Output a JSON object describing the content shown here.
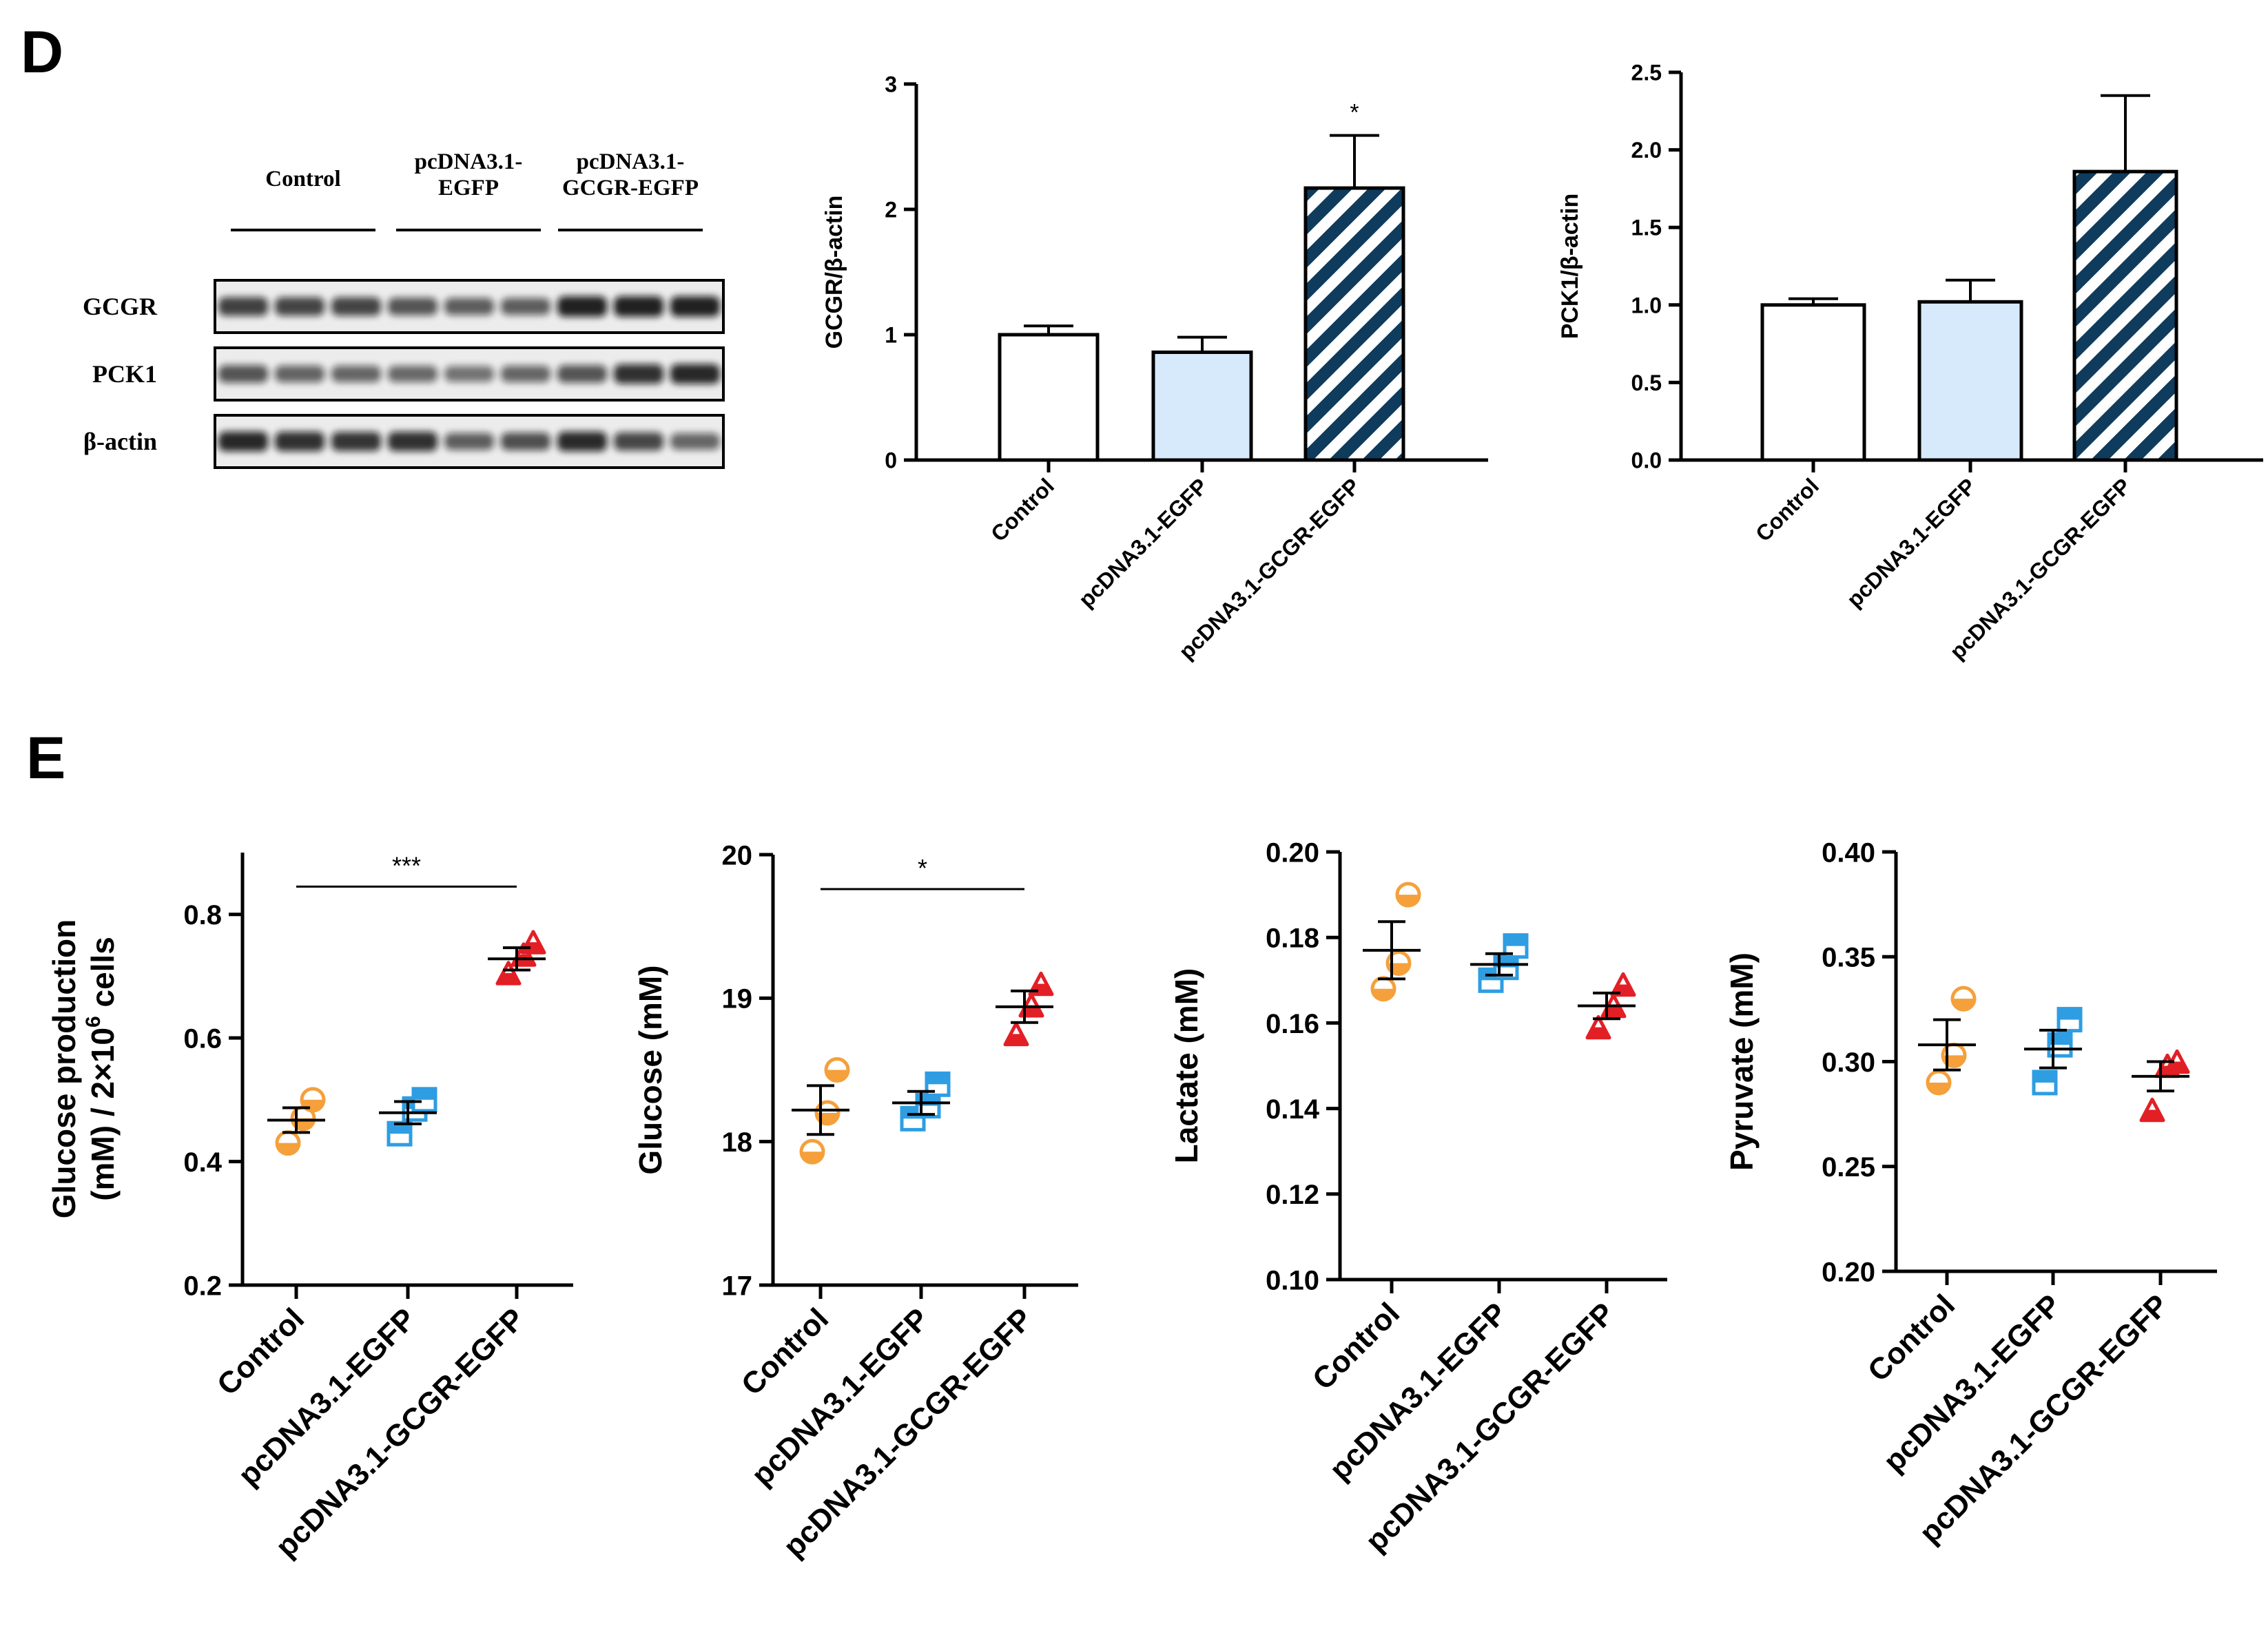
{
  "panel_labels": {
    "d": "D",
    "e": "E"
  },
  "colors": {
    "axis": "#000000",
    "light_blue_bar": "#d7eafb",
    "hatch_dark": "#0f3b5c",
    "orange": "#f5a03b",
    "blue": "#2e9de2",
    "red": "#e31f26"
  },
  "western_blot": {
    "groups": [
      "Control",
      "pcDNA3.1-\nEGFP",
      "pcDNA3.1-\nGCGR-EGFP"
    ],
    "rows": [
      {
        "name": "GCGR",
        "intensities": [
          0.75,
          0.72,
          0.72,
          0.62,
          0.56,
          0.55,
          0.95,
          0.95,
          0.95
        ]
      },
      {
        "name": "PCK1",
        "intensities": [
          0.62,
          0.52,
          0.5,
          0.48,
          0.42,
          0.5,
          0.62,
          0.85,
          0.9
        ]
      },
      {
        "name": "β-actin",
        "intensities": [
          0.9,
          0.85,
          0.82,
          0.85,
          0.55,
          0.65,
          0.88,
          0.7,
          0.5
        ]
      }
    ]
  },
  "chart_data": [
    {
      "type": "bar",
      "id": "gcgr",
      "categories": [
        "Control",
        "pcDNA3.1-EGFP",
        "pcDNA3.1-GCGR-EGFP"
      ],
      "values": [
        1.0,
        0.86,
        2.17
      ],
      "errors": [
        0.07,
        0.12,
        0.42
      ],
      "fills": [
        "white",
        "light",
        "hatch"
      ],
      "annotations": [
        "",
        "",
        "*"
      ],
      "ylabel": "GCGR/β-actin",
      "ylim": [
        0,
        3
      ],
      "yticks": [
        "0",
        "1",
        "2",
        "3"
      ]
    },
    {
      "type": "bar",
      "id": "pck1",
      "categories": [
        "Control",
        "pcDNA3.1-EGFP",
        "pcDNA3.1-GCGR-EGFP"
      ],
      "values": [
        1.0,
        1.02,
        1.86
      ],
      "errors": [
        0.04,
        0.14,
        0.49
      ],
      "fills": [
        "white",
        "light",
        "hatch"
      ],
      "annotations": [
        "",
        "",
        ""
      ],
      "ylabel": "PCK1/β-actin",
      "ylim": [
        0,
        2.5
      ],
      "yticks": [
        "0.0",
        "0.5",
        "1.0",
        "1.5",
        "2.0",
        "2.5"
      ]
    },
    {
      "type": "scatter",
      "id": "glucose-production",
      "categories": [
        "Control",
        "pcDNA3.1-EGFP",
        "pcDNA3.1-GCGR-EGFP"
      ],
      "ylabel_lines": [
        "Glucose production",
        "(mM) / 2×10",
        "6",
        " cells"
      ],
      "ylim": [
        0.2,
        0.9
      ],
      "yticks": [
        "0.2",
        "0.4",
        "0.6",
        "0.8"
      ],
      "series": [
        {
          "name": "Control",
          "marker": "circle",
          "color": "orange",
          "points": [
            0.43,
            0.47,
            0.5
          ],
          "mean": 0.467,
          "sem": 0.02
        },
        {
          "name": "pcDNA3.1-EGFP",
          "marker": "square",
          "color": "blue",
          "points": [
            0.445,
            0.485,
            0.5
          ],
          "mean": 0.479,
          "sem": 0.018
        },
        {
          "name": "pcDNA3.1-GCGR-EGFP",
          "marker": "triangle",
          "color": "red",
          "points": [
            0.705,
            0.735,
            0.755
          ],
          "mean": 0.728,
          "sem": 0.018
        }
      ],
      "significance": {
        "from": 0,
        "to": 2,
        "label": "***",
        "y": 0.845
      }
    },
    {
      "type": "scatter",
      "id": "glucose",
      "categories": [
        "Control",
        "pcDNA3.1-EGFP",
        "pcDNA3.1-GCGR-EGFP"
      ],
      "ylabel_lines": [
        "Glucose (mM)"
      ],
      "ylim": [
        17,
        20
      ],
      "yticks": [
        "17",
        "18",
        "19",
        "20"
      ],
      "series": [
        {
          "name": "Control",
          "marker": "circle",
          "color": "orange",
          "points": [
            17.93,
            18.2,
            18.5
          ],
          "mean": 18.22,
          "sem": 0.17
        },
        {
          "name": "pcDNA3.1-EGFP",
          "marker": "square",
          "color": "blue",
          "points": [
            18.16,
            18.25,
            18.4
          ],
          "mean": 18.27,
          "sem": 0.08
        },
        {
          "name": "pcDNA3.1-GCGR-EGFP",
          "marker": "triangle",
          "color": "red",
          "points": [
            18.75,
            18.95,
            19.1
          ],
          "mean": 18.94,
          "sem": 0.11
        }
      ],
      "significance": {
        "from": 0,
        "to": 2,
        "label": "*",
        "y": 19.76
      }
    },
    {
      "type": "scatter",
      "id": "lactate",
      "categories": [
        "Control",
        "pcDNA3.1-EGFP",
        "pcDNA3.1-GCGR-EGFP"
      ],
      "ylabel_lines": [
        "Lactate (mM)"
      ],
      "ylim": [
        0.1,
        0.2
      ],
      "yticks": [
        "0.10",
        "0.12",
        "0.14",
        "0.16",
        "0.18",
        "0.20"
      ],
      "series": [
        {
          "name": "Control",
          "marker": "circle",
          "color": "orange",
          "points": [
            0.168,
            0.174,
            0.19
          ],
          "mean": 0.177,
          "sem": 0.0067
        },
        {
          "name": "pcDNA3.1-EGFP",
          "marker": "square",
          "color": "blue",
          "points": [
            0.17,
            0.173,
            0.178
          ],
          "mean": 0.1737,
          "sem": 0.0025
        },
        {
          "name": "pcDNA3.1-GCGR-EGFP",
          "marker": "triangle",
          "color": "red",
          "points": [
            0.159,
            0.164,
            0.169
          ],
          "mean": 0.164,
          "sem": 0.003
        }
      ]
    },
    {
      "type": "scatter",
      "id": "pyruvate",
      "categories": [
        "Control",
        "pcDNA3.1-EGFP",
        "pcDNA3.1-GCGR-EGFP"
      ],
      "ylabel_lines": [
        "Pyruvate (mM)"
      ],
      "ylim": [
        0.2,
        0.4
      ],
      "yticks": [
        "0.20",
        "0.25",
        "0.30",
        "0.35",
        "0.40"
      ],
      "series": [
        {
          "name": "Control",
          "marker": "circle",
          "color": "orange",
          "points": [
            0.29,
            0.303,
            0.33
          ],
          "mean": 0.308,
          "sem": 0.012
        },
        {
          "name": "pcDNA3.1-EGFP",
          "marker": "square",
          "color": "blue",
          "points": [
            0.29,
            0.308,
            0.32
          ],
          "mean": 0.306,
          "sem": 0.009
        },
        {
          "name": "pcDNA3.1-GCGR-EGFP",
          "marker": "triangle",
          "color": "red",
          "points": [
            0.277,
            0.298,
            0.3
          ],
          "mean": 0.293,
          "sem": 0.007
        }
      ]
    }
  ]
}
